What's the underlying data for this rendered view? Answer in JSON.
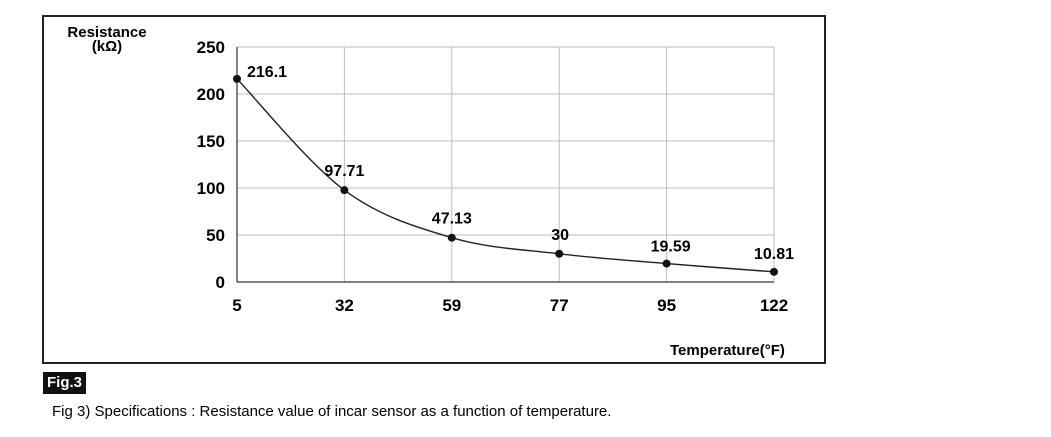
{
  "figure": {
    "badge": "Fig.3",
    "caption": "Fig 3) Specifications : Resistance value of incar sensor as a function of temperature."
  },
  "chart_data": {
    "type": "line",
    "ylabel_line1": "Resistance",
    "ylabel_line2": "(kΩ)",
    "xlabel": "Temperature(°F)",
    "categories": [
      "5",
      "32",
      "59",
      "77",
      "95",
      "122"
    ],
    "values": [
      216.1,
      97.71,
      47.13,
      30,
      19.59,
      10.81
    ],
    "data_labels": [
      "216.1",
      "97.71",
      "47.13",
      "30",
      "19.59",
      "10.81"
    ],
    "yticks": [
      0,
      50,
      100,
      150,
      200,
      250
    ],
    "ylim": [
      0,
      250
    ],
    "grid": true,
    "line_color": "#222222",
    "grid_color": "#bdbdbd"
  }
}
